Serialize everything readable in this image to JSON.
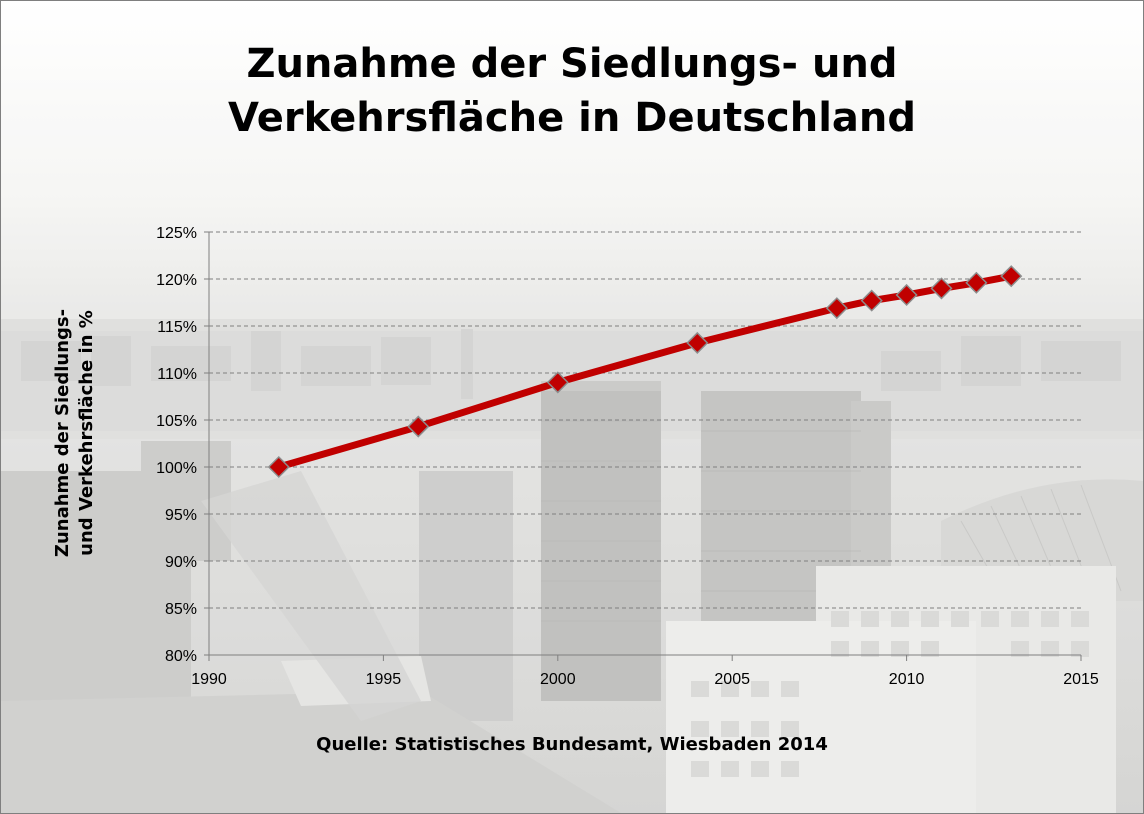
{
  "slide": {
    "title_line1": "Zunahme der Siedlungs- und",
    "title_line2": "Verkehrsfläche in Deutschland",
    "source": "Quelle: Statistisches Bundesamt, Wiesbaden 2014"
  },
  "colors": {
    "series_line": "#c00000",
    "marker_fill": "#c00000",
    "marker_stroke": "#8c8c8c",
    "gridline": "#7f7f7f",
    "axis": "#7f7f7f",
    "background_tint": "#d9d9d9"
  },
  "chart_data": {
    "type": "line",
    "title": "Zunahme der Siedlungs- und Verkehrsfläche in Deutschland",
    "xlabel": "",
    "ylabel_line1": "Zunahme der Siedlungs-",
    "ylabel_line2": "und Verkehrsfläche in %",
    "xlim": [
      1990,
      2015
    ],
    "ylim": [
      80,
      125
    ],
    "x_ticks": [
      1990,
      1995,
      2000,
      2005,
      2010,
      2015
    ],
    "y_ticks": [
      80,
      85,
      90,
      95,
      100,
      105,
      110,
      115,
      120,
      125
    ],
    "y_tick_suffix": "%",
    "grid": "horizontal dashed",
    "series": [
      {
        "x": [
          1992,
          1996,
          2000,
          2004,
          2008,
          2009,
          2010,
          2011,
          2012,
          2013
        ],
        "values": [
          100.0,
          104.3,
          109.0,
          113.2,
          116.9,
          117.7,
          118.3,
          119.0,
          119.6,
          120.3
        ]
      }
    ]
  }
}
